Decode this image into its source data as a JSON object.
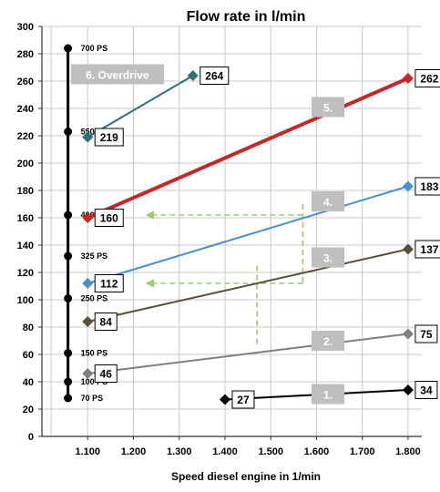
{
  "chart_data": {
    "type": "line",
    "title": "Flow rate in l/min",
    "xlabel": "Speed diesel engine in 1/min",
    "ylabel": "",
    "xlim": [
      1000,
      1830
    ],
    "ylim": [
      0,
      300
    ],
    "x_ticks": [
      {
        "value": 1100,
        "label": "1.100"
      },
      {
        "value": 1200,
        "label": "1.200"
      },
      {
        "value": 1300,
        "label": "1.300"
      },
      {
        "value": 1400,
        "label": "1.400"
      },
      {
        "value": 1500,
        "label": "1.500"
      },
      {
        "value": 1600,
        "label": "1.600"
      },
      {
        "value": 1700,
        "label": "1.700"
      },
      {
        "value": 1800,
        "label": "1.800"
      }
    ],
    "y_ticks": [
      0,
      20,
      40,
      60,
      80,
      100,
      120,
      140,
      160,
      180,
      200,
      220,
      240,
      260,
      280,
      300
    ],
    "grid": true,
    "series": [
      {
        "name": "1.",
        "color": "#000000",
        "width": 2,
        "points": [
          [
            1400,
            27
          ],
          [
            1800,
            34
          ]
        ],
        "labels": [
          "27",
          "34"
        ],
        "label_value": "1.",
        "label_at": [
          1625,
          31
        ]
      },
      {
        "name": "2.",
        "color": "#7f7f7f",
        "width": 2,
        "points": [
          [
            1100,
            46
          ],
          [
            1800,
            75
          ]
        ],
        "labels": [
          "46",
          "75"
        ],
        "label_value": "2.",
        "label_at": [
          1625,
          70
        ]
      },
      {
        "name": "3.",
        "color": "#594f3b",
        "width": 2,
        "points": [
          [
            1100,
            84
          ],
          [
            1800,
            137
          ]
        ],
        "labels": [
          "84",
          "137"
        ],
        "label_value": "3.",
        "label_at": [
          1625,
          131
        ]
      },
      {
        "name": "4.",
        "color": "#4a90d4",
        "width": 2,
        "points": [
          [
            1100,
            112
          ],
          [
            1800,
            183
          ]
        ],
        "labels": [
          "112",
          "183"
        ],
        "label_value": "4.",
        "label_at": [
          1625,
          172
        ]
      },
      {
        "name": "5.",
        "color": "#c62828",
        "width": 4,
        "points": [
          [
            1100,
            160
          ],
          [
            1800,
            262
          ]
        ],
        "labels": [
          "160",
          "262"
        ],
        "label_value": "5.",
        "label_at": [
          1625,
          241
        ]
      },
      {
        "name": "6. Overdrive",
        "color": "#2f6f7f",
        "width": 2,
        "points": [
          [
            1100,
            219
          ],
          [
            1330,
            264
          ]
        ],
        "labels": [
          "219",
          "264"
        ],
        "label_value": "6. Overdrive",
        "label_at": [
          1165,
          265
        ]
      }
    ],
    "power_scale": {
      "x": 1057,
      "points": [
        {
          "value": 284,
          "label": "700 PS"
        },
        {
          "value": 223,
          "label": "550 PS"
        },
        {
          "value": 162,
          "label": "400 PS"
        },
        {
          "value": 132,
          "label": "325 PS"
        },
        {
          "value": 101,
          "label": "250 PS"
        },
        {
          "value": 61,
          "label": "150 PS"
        },
        {
          "value": 40,
          "label": "100 PS"
        },
        {
          "value": 28,
          "label": "70 PS"
        }
      ]
    },
    "guides": [
      {
        "from": [
          1570,
          162
        ],
        "to": [
          1230,
          162
        ],
        "arrow": true
      },
      {
        "from": [
          1570,
          170
        ],
        "to": [
          1570,
          112
        ],
        "arrow": false
      },
      {
        "from": [
          1570,
          112
        ],
        "to": [
          1230,
          112
        ],
        "arrow": true
      },
      {
        "from": [
          1470,
          125
        ],
        "to": [
          1470,
          66
        ],
        "arrow": false
      }
    ],
    "guide_color": "#9bcb6b"
  }
}
